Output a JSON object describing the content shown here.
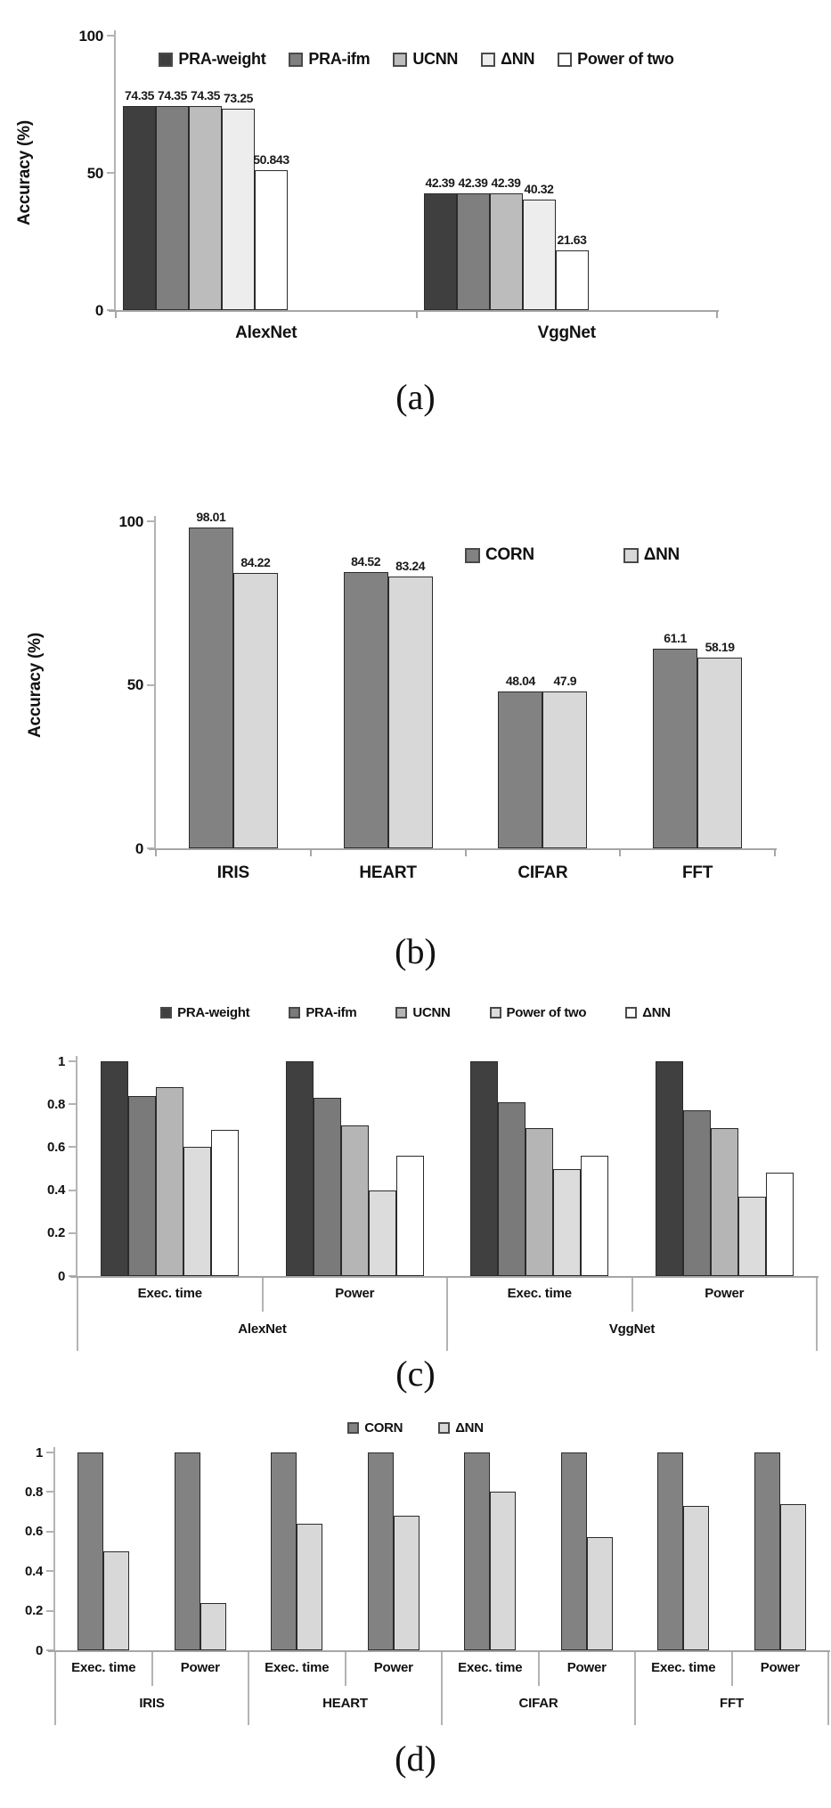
{
  "page": {
    "background": "#ffffff"
  },
  "chart_data": [
    {
      "id": "a",
      "caption": "(a)",
      "type": "bar",
      "title": "",
      "xlabel": "",
      "ylabel": "Accuracy (%)",
      "ylim": [
        0,
        100
      ],
      "yticks": [
        0,
        50,
        100
      ],
      "grid": false,
      "legend_position": "inside-top",
      "series": [
        {
          "name": "PRA-weight",
          "color": "#3f3f3f"
        },
        {
          "name": "PRA-ifm",
          "color": "#7f7f7f"
        },
        {
          "name": "UCNN",
          "color": "#bcbcbc"
        },
        {
          "name": "ΔNN",
          "color": "#ededed"
        },
        {
          "name": "Power of two",
          "color": "#ffffff"
        }
      ],
      "categories": [
        "AlexNet",
        "VggNet"
      ],
      "values": [
        [
          74.35,
          74.35,
          74.35,
          73.25,
          50.843
        ],
        [
          42.39,
          42.39,
          42.39,
          40.32,
          21.63
        ]
      ],
      "bar_labels": [
        [
          "74.35",
          "74.35",
          "74.35",
          "73.25",
          "50.843"
        ],
        [
          "42.39",
          "42.39",
          "42.39",
          "40.32",
          "21.63"
        ]
      ]
    },
    {
      "id": "b",
      "caption": "(b)",
      "type": "bar",
      "title": "",
      "xlabel": "",
      "ylabel": "Accuracy (%)",
      "ylim": [
        0,
        100
      ],
      "yticks": [
        0,
        50,
        100
      ],
      "grid": false,
      "legend_position": "inside-right",
      "series": [
        {
          "name": "CORN",
          "color": "#828282"
        },
        {
          "name": "ΔNN",
          "color": "#d8d8d8"
        }
      ],
      "categories": [
        "IRIS",
        "HEART",
        "CIFAR",
        "FFT"
      ],
      "values": [
        [
          98.01,
          84.22
        ],
        [
          84.52,
          83.24
        ],
        [
          48.04,
          47.9
        ],
        [
          61.1,
          58.19
        ]
      ],
      "bar_labels": [
        [
          "98.01",
          "84.22"
        ],
        [
          "84.52",
          "83.24"
        ],
        [
          "48.04",
          "47.9"
        ],
        [
          "61.1",
          "58.19"
        ]
      ]
    },
    {
      "id": "c",
      "caption": "(c)",
      "type": "bar",
      "title": "",
      "xlabel": "",
      "ylabel": "",
      "ylim": [
        0,
        1
      ],
      "yticks": [
        0,
        0.2,
        0.4,
        0.6,
        0.8,
        1
      ],
      "grid": false,
      "legend_position": "above-center",
      "series": [
        {
          "name": "PRA-weight",
          "color": "#404040"
        },
        {
          "name": "PRA-ifm",
          "color": "#7a7a7a"
        },
        {
          "name": "UCNN",
          "color": "#b5b5b5"
        },
        {
          "name": "Power of two",
          "color": "#dcdcdc"
        },
        {
          "name": "ΔNN",
          "color": "#ffffff"
        }
      ],
      "categories": [
        "Exec. time",
        "Power",
        "Exec. time",
        "Power"
      ],
      "super_categories": [
        {
          "label": "AlexNet",
          "span": 2
        },
        {
          "label": "VggNet",
          "span": 2
        }
      ],
      "values": [
        [
          1,
          0.84,
          0.88,
          0.6,
          0.68
        ],
        [
          1,
          0.83,
          0.7,
          0.4,
          0.56
        ],
        [
          1,
          0.81,
          0.69,
          0.5,
          0.56
        ],
        [
          1,
          0.77,
          0.69,
          0.37,
          0.48
        ]
      ]
    },
    {
      "id": "d",
      "caption": "(d)",
      "type": "bar",
      "title": "",
      "xlabel": "",
      "ylabel": "",
      "ylim": [
        0,
        1
      ],
      "yticks": [
        0,
        0.2,
        0.4,
        0.6,
        0.8,
        1
      ],
      "grid": false,
      "legend_position": "above-center",
      "series": [
        {
          "name": "CORN",
          "color": "#828282"
        },
        {
          "name": "ΔNN",
          "color": "#d8d8d8"
        }
      ],
      "categories": [
        "Exec. time",
        "Power",
        "Exec. time",
        "Power",
        "Exec. time",
        "Power",
        "Exec. time",
        "Power"
      ],
      "super_categories": [
        {
          "label": "IRIS",
          "span": 2
        },
        {
          "label": "HEART",
          "span": 2
        },
        {
          "label": "CIFAR",
          "span": 2
        },
        {
          "label": "FFT",
          "span": 2
        }
      ],
      "values": [
        [
          1,
          0.5
        ],
        [
          1,
          0.24
        ],
        [
          1,
          0.64
        ],
        [
          1,
          0.68
        ],
        [
          1,
          0.8
        ],
        [
          1,
          0.57
        ],
        [
          1,
          0.73
        ],
        [
          1,
          0.74
        ]
      ]
    }
  ]
}
